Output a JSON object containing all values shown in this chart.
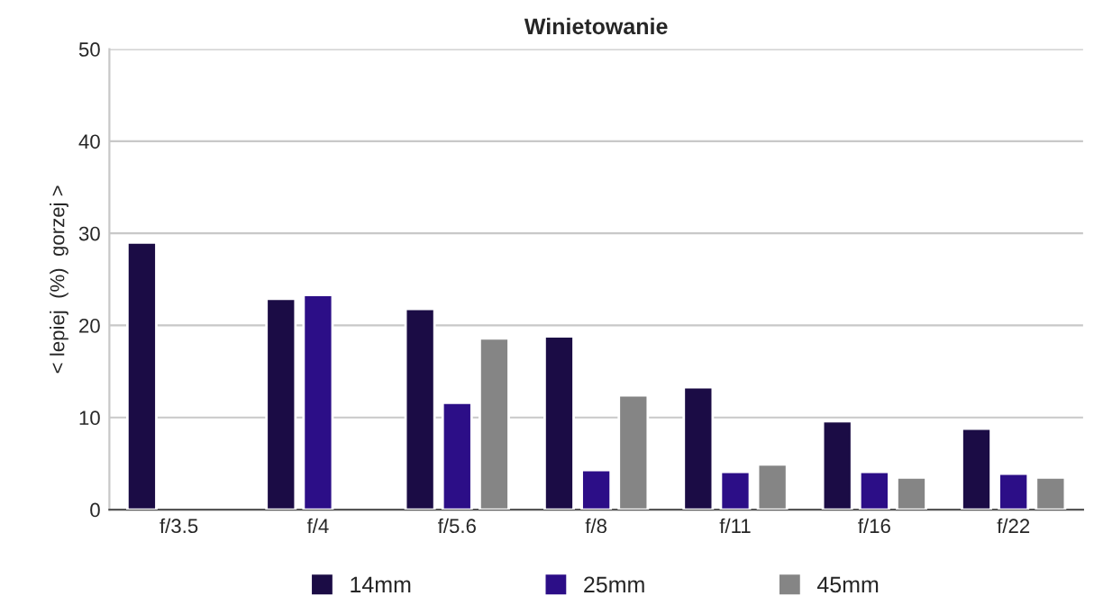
{
  "chart_data": {
    "type": "bar",
    "title": "Winietowanie",
    "ylabel": "< lepiej  (%)  gorzej >",
    "categories": [
      "f/3.5",
      "f/4",
      "f/5.6",
      "f/8",
      "f/11",
      "f/16",
      "f/22"
    ],
    "series": [
      {
        "name": "14mm",
        "color": "#1b0c45",
        "values": [
          29.0,
          22.9,
          21.8,
          18.8,
          13.3,
          9.6,
          8.8
        ]
      },
      {
        "name": "25mm",
        "color": "#2c0e87",
        "values": [
          null,
          23.3,
          11.6,
          4.3,
          4.1,
          4.1,
          3.9
        ]
      },
      {
        "name": "45mm",
        "color": "#858585",
        "values": [
          null,
          null,
          18.6,
          12.4,
          4.9,
          3.5,
          3.5
        ]
      }
    ],
    "ylim": [
      0,
      50
    ],
    "yticks": [
      0,
      10,
      20,
      30,
      40,
      50
    ],
    "grid": "y",
    "legend": "bottom"
  }
}
